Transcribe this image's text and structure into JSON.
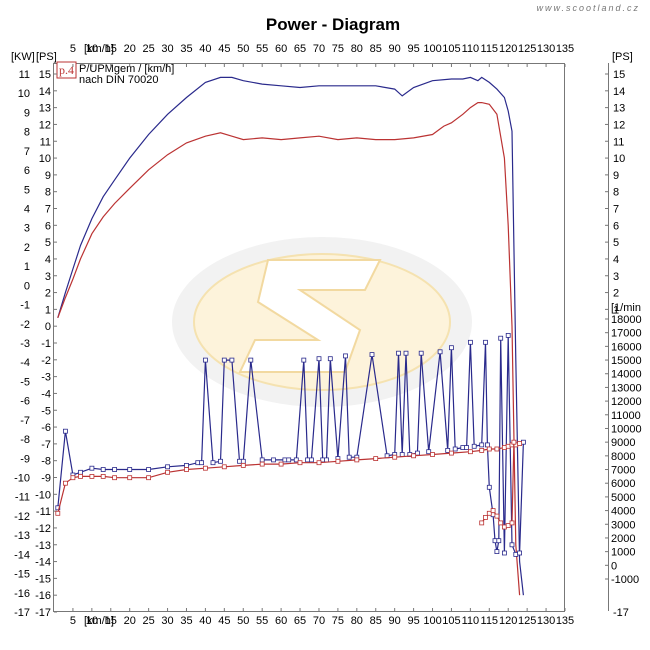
{
  "chart_data": {
    "type": "line",
    "title": "Power - Diagram",
    "watermark": "www.scootland.cz",
    "legend": {
      "badge": "p.4",
      "line1": "P/UPMgem / [km/h]",
      "line2": "nach DIN 70020"
    },
    "axis_labels": {
      "kw": "[KW]",
      "ps_left": "[PS]",
      "speed_top": "[km/h]",
      "speed_bottom": "[km/h]",
      "ps_right": "[PS]",
      "rpm": "[1/min"
    },
    "x_range": [
      0,
      135
    ],
    "x_ticks": [
      5,
      10,
      15,
      20,
      25,
      30,
      35,
      40,
      45,
      50,
      55,
      60,
      65,
      70,
      75,
      80,
      85,
      90,
      95,
      100,
      105,
      110,
      115,
      120,
      125,
      130,
      135
    ],
    "kw_range": [
      -17,
      11
    ],
    "kw_ticks": [
      11,
      10,
      9,
      8,
      7,
      6,
      5,
      4,
      3,
      2,
      1,
      0,
      -1,
      -2,
      -3,
      -4,
      -5,
      -6,
      -7,
      -8,
      -9,
      -10,
      -11,
      -12,
      -13,
      -14,
      -15,
      -16,
      -17
    ],
    "ps_range": [
      -17,
      15
    ],
    "ps_ticks": [
      15,
      14,
      13,
      12,
      11,
      10,
      9,
      8,
      7,
      6,
      5,
      4,
      3,
      2,
      1,
      0,
      -1,
      -2,
      -3,
      -4,
      -5,
      -6,
      -7,
      -8,
      -9,
      -10,
      -11,
      -12,
      -13,
      -14,
      -15,
      -16,
      -17
    ],
    "ps_right_ticks": [
      15,
      14,
      13,
      12,
      11,
      10,
      9,
      8,
      7,
      6,
      5,
      4,
      3,
      2,
      1
    ],
    "rpm_range": [
      -1000,
      18000
    ],
    "rpm_ticks": [
      18000,
      17000,
      16000,
      15000,
      14000,
      13000,
      12000,
      11000,
      10000,
      9000,
      8000,
      7000,
      6000,
      5000,
      4000,
      3000,
      2000,
      1000,
      0,
      -1000
    ],
    "series": [
      {
        "axis": "ps",
        "color": "#2a2a8c",
        "x": [
          1,
          3,
          5,
          7,
          10,
          13,
          16,
          20,
          25,
          30,
          35,
          40,
          44,
          47,
          50,
          55,
          60,
          65,
          70,
          75,
          80,
          85,
          90,
          92,
          95,
          100,
          105,
          108,
          110,
          112,
          113,
          115,
          117,
          119,
          120,
          121,
          122,
          123,
          124
        ],
        "y": [
          0.5,
          2,
          3.4,
          4.8,
          6.4,
          7.7,
          8.7,
          10,
          11.4,
          12.6,
          13.6,
          14.5,
          14.8,
          14.8,
          14.6,
          14.4,
          14.3,
          14.2,
          14.3,
          14.3,
          14.3,
          14.3,
          14.1,
          13.7,
          14.2,
          14.6,
          14.7,
          14.7,
          14.8,
          14.6,
          14.8,
          14.5,
          14.1,
          13.6,
          12.8,
          11.6,
          -2,
          -14,
          -16
        ]
      },
      {
        "axis": "ps",
        "color": "#bb3333",
        "x": [
          1,
          3,
          5,
          7,
          10,
          13,
          16,
          20,
          25,
          30,
          35,
          40,
          44,
          47,
          50,
          55,
          60,
          65,
          70,
          75,
          80,
          85,
          90,
          95,
          100,
          103,
          105,
          108,
          110,
          112,
          113,
          115,
          117,
          119,
          120,
          121,
          122,
          123
        ],
        "y": [
          0.5,
          1.7,
          2.8,
          4,
          5.5,
          6.5,
          7.3,
          8.2,
          9.3,
          10.2,
          10.9,
          11.3,
          11.5,
          11.3,
          11.1,
          11.2,
          11.1,
          11.2,
          11.3,
          11.1,
          11.2,
          11.1,
          11.1,
          11.2,
          11.4,
          11.9,
          12.1,
          12.6,
          13.0,
          13.3,
          13.3,
          13.2,
          12.6,
          10,
          6,
          0,
          -13,
          -16
        ]
      },
      {
        "axis": "rpm",
        "color": "#2a2a8c",
        "x": [
          1,
          3,
          5,
          7,
          10,
          13,
          16,
          20,
          25,
          30,
          35,
          38,
          39,
          40,
          42,
          44,
          45,
          47,
          49,
          50,
          52,
          55,
          58,
          61,
          62,
          64,
          66,
          67,
          68,
          70,
          71,
          72,
          73,
          75,
          77,
          78,
          80,
          84,
          88,
          90,
          91,
          92,
          93,
          94,
          96,
          97,
          99,
          102,
          104,
          105,
          106,
          108,
          109,
          110,
          111,
          113,
          114,
          114.5,
          115,
          116,
          116.5,
          117,
          117.5,
          118,
          119,
          120,
          121,
          122,
          123,
          124
        ],
        "y": [
          4200,
          9800,
          6600,
          6800,
          7100,
          7000,
          7000,
          7000,
          7000,
          7200,
          7300,
          7500,
          7500,
          15000,
          7500,
          7600,
          15000,
          15000,
          7600,
          7600,
          15000,
          7700,
          7700,
          7700,
          7700,
          7700,
          15000,
          7700,
          7700,
          15100,
          7700,
          7700,
          15100,
          7800,
          15300,
          7900,
          7900,
          15400,
          8000,
          8100,
          15500,
          8100,
          15500,
          8100,
          8200,
          15500,
          8300,
          15600,
          8400,
          15900,
          8500,
          8600,
          8600,
          16300,
          8700,
          8800,
          16300,
          8800,
          5700,
          3700,
          1800,
          1000,
          1800,
          16600,
          900,
          16800,
          1500,
          800,
          900,
          9000
        ]
      },
      {
        "axis": "rpm",
        "color": "#bb3333",
        "x": [
          1,
          3,
          5,
          7,
          10,
          13,
          16,
          20,
          25,
          30,
          35,
          40,
          45,
          50,
          55,
          60,
          65,
          70,
          75,
          80,
          85,
          90,
          95,
          100,
          105,
          110,
          113,
          115,
          117,
          119,
          120,
          121,
          122,
          123
        ],
        "y": [
          3800,
          6000,
          6400,
          6500,
          6500,
          6500,
          6400,
          6400,
          6400,
          6800,
          7000,
          7100,
          7200,
          7300,
          7400,
          7400,
          7500,
          7500,
          7600,
          7700,
          7800,
          7900,
          8000,
          8100,
          8200,
          8300,
          8400,
          8500,
          8500,
          8600,
          8700,
          8800,
          8800,
          8900
        ]
      },
      {
        "axis": "rpm",
        "color": "#bb3333",
        "x": [
          113,
          114,
          115,
          116,
          117,
          118,
          119,
          120,
          121,
          121.5
        ],
        "y": [
          3100,
          3500,
          3800,
          4000,
          3600,
          3100,
          2800,
          2900,
          3100,
          9000
        ]
      }
    ]
  }
}
